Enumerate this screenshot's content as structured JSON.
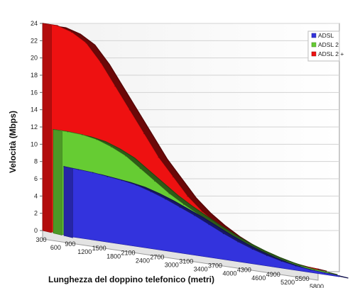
{
  "chart_data": {
    "type": "area",
    "style": "3d",
    "xlabel": "Lunghezza del doppino telefonico (metri)",
    "ylabel": "Velocità (Mbps)",
    "x": [
      300,
      600,
      900,
      1200,
      1500,
      1800,
      2100,
      2400,
      2700,
      3000,
      3100,
      3400,
      3700,
      4000,
      4300,
      4600,
      4900,
      5200,
      5500,
      5800
    ],
    "ylim": [
      0,
      24
    ],
    "yticks": [
      0,
      2,
      4,
      6,
      8,
      10,
      12,
      14,
      16,
      18,
      20,
      22,
      24
    ],
    "grid": true,
    "legend_position": "top-right",
    "series": [
      {
        "name": "ADSL",
        "color": "#3333dd",
        "values": [
          8.0,
          7.9,
          7.8,
          7.6,
          7.4,
          7.1,
          6.6,
          6.0,
          5.3,
          4.6,
          3.8,
          3.0,
          2.3,
          1.7,
          1.2,
          0.8,
          0.5,
          0.3,
          0.2,
          0.1
        ]
      },
      {
        "name": "ADSL 2",
        "color": "#66cc33",
        "values": [
          12.0,
          12.0,
          11.9,
          11.6,
          11.0,
          10.2,
          9.0,
          7.8,
          6.6,
          5.6,
          4.7,
          3.8,
          3.0,
          2.3,
          1.7,
          1.2,
          0.8,
          0.5,
          0.3,
          0.2
        ]
      },
      {
        "name": "ADSL 2 +",
        "color": "#ee1111",
        "values": [
          24.0,
          24.0,
          23.5,
          22.5,
          20.5,
          18.0,
          15.5,
          13.0,
          10.5,
          8.5,
          6.5,
          5.0,
          3.8,
          2.8,
          2.0,
          1.4,
          0.9,
          0.6,
          0.4,
          0.3
        ]
      }
    ]
  }
}
